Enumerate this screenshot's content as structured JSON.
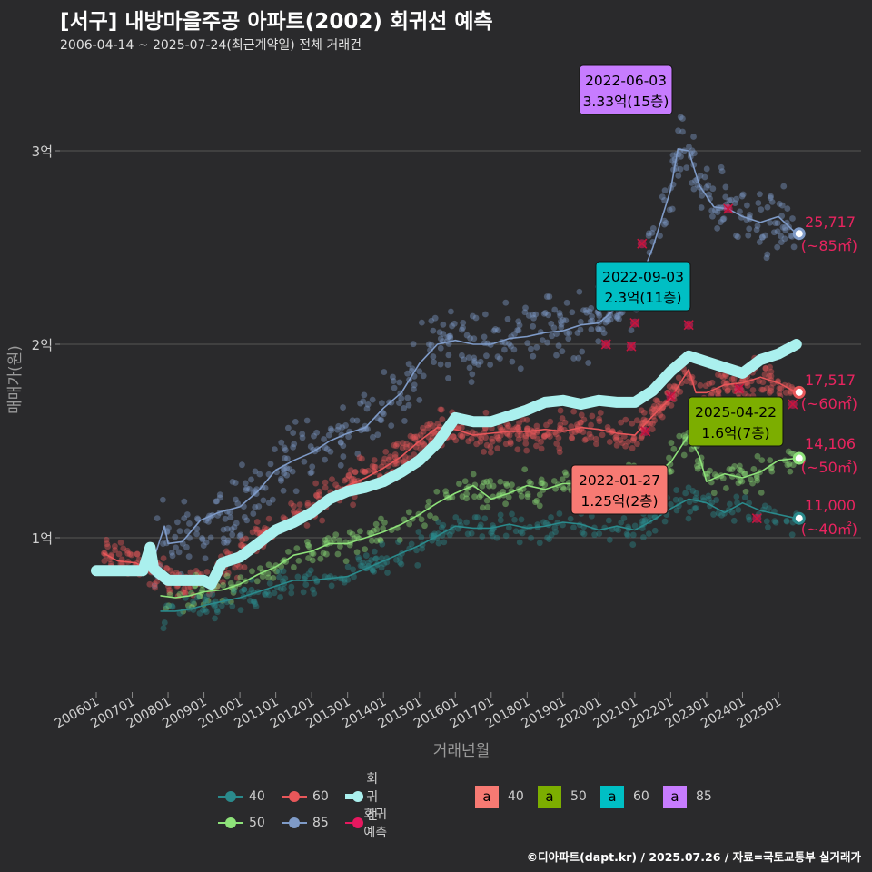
{
  "header": {
    "title": "[서구] 내방마을주공 아파트(2002) 회귀선 예측",
    "subtitle": "2006-04-14 ~ 2025-07-24(최근계약일) 전체 거래건"
  },
  "caption": "©디아파트(dapt.kr) / 2025.07.26 / 자료=국토교통부 실거래가",
  "legend": {
    "lines": [
      {
        "label": "40",
        "color": "#2a8a8c"
      },
      {
        "label": "60",
        "color": "#e8575a"
      },
      {
        "label": "회귀선",
        "color": "#aaf0ee"
      },
      {
        "label": "50",
        "color": "#8ee27a"
      },
      {
        "label": "85",
        "color": "#7f9bc8"
      },
      {
        "label": "회귀예측",
        "color": "#e6185f"
      }
    ],
    "box_glyph": "a",
    "boxes": [
      {
        "label": "40",
        "color": "#f77a73"
      },
      {
        "label": "50",
        "color": "#7cae00"
      },
      {
        "label": "60",
        "color": "#00bfc4"
      },
      {
        "label": "85",
        "color": "#c77cff"
      }
    ]
  },
  "chart_data": {
    "type": "line",
    "xlabel": "거래년월",
    "ylabel": "매매가(원)",
    "x_ticks": [
      "200601",
      "200701",
      "200801",
      "200901",
      "201001",
      "201101",
      "201201",
      "201301",
      "201401",
      "201501",
      "201601",
      "201701",
      "201801",
      "201901",
      "202001",
      "202101",
      "202201",
      "202301",
      "202401",
      "202501"
    ],
    "y_ticks": [
      {
        "value": 10000,
        "label": "1억"
      },
      {
        "value": 20000,
        "label": "2억"
      },
      {
        "value": 30000,
        "label": "3억"
      }
    ],
    "y_unit": "만원",
    "ylim": [
      7500,
      33500
    ],
    "grid": true,
    "series": [
      {
        "name": "85",
        "color": "#7f9bc8",
        "points": [
          [
            2007.6,
            8900
          ],
          [
            2007.9,
            10600
          ],
          [
            2008.0,
            9700
          ],
          [
            2008.4,
            9800
          ],
          [
            2008.9,
            10900
          ],
          [
            2009.4,
            11300
          ],
          [
            2010.0,
            11600
          ],
          [
            2010.5,
            12400
          ],
          [
            2011.0,
            13500
          ],
          [
            2011.5,
            14000
          ],
          [
            2012.0,
            14400
          ],
          [
            2012.5,
            15000
          ],
          [
            2013.0,
            15400
          ],
          [
            2013.5,
            15700
          ],
          [
            2014.0,
            16700
          ],
          [
            2014.5,
            17500
          ],
          [
            2015.0,
            19000
          ],
          [
            2015.5,
            20000
          ],
          [
            2016.0,
            20200
          ],
          [
            2016.5,
            20000
          ],
          [
            2017.0,
            20000
          ],
          [
            2017.5,
            20300
          ],
          [
            2018.0,
            20400
          ],
          [
            2018.5,
            20600
          ],
          [
            2019.0,
            20700
          ],
          [
            2019.5,
            21000
          ],
          [
            2020.0,
            21100
          ],
          [
            2020.5,
            21900
          ],
          [
            2021.0,
            22600
          ],
          [
            2021.5,
            25000
          ],
          [
            2022.0,
            28000
          ],
          [
            2022.2,
            30100
          ],
          [
            2022.5,
            30000
          ],
          [
            2022.8,
            28200
          ],
          [
            2023.2,
            27100
          ],
          [
            2023.6,
            27000
          ],
          [
            2024.0,
            26600
          ],
          [
            2024.5,
            26300
          ],
          [
            2025.0,
            26600
          ],
          [
            2025.5,
            25717
          ]
        ]
      },
      {
        "name": "60",
        "color": "#e8575a",
        "points": [
          [
            2006.2,
            9200
          ],
          [
            2006.6,
            8800
          ],
          [
            2007.1,
            8700
          ],
          [
            2007.6,
            8200
          ],
          [
            2008.1,
            7900
          ],
          [
            2008.6,
            7700
          ],
          [
            2009.0,
            7600
          ],
          [
            2009.5,
            8400
          ],
          [
            2010.0,
            9200
          ],
          [
            2010.5,
            10000
          ],
          [
            2011.0,
            10400
          ],
          [
            2011.5,
            10900
          ],
          [
            2012.0,
            11500
          ],
          [
            2012.5,
            12200
          ],
          [
            2013.0,
            12700
          ],
          [
            2013.5,
            13100
          ],
          [
            2014.0,
            13600
          ],
          [
            2014.5,
            14200
          ],
          [
            2015.0,
            15000
          ],
          [
            2015.5,
            15700
          ],
          [
            2016.0,
            15600
          ],
          [
            2016.5,
            15300
          ],
          [
            2017.0,
            15400
          ],
          [
            2017.5,
            15500
          ],
          [
            2018.0,
            15500
          ],
          [
            2018.5,
            15600
          ],
          [
            2019.0,
            15500
          ],
          [
            2019.5,
            15700
          ],
          [
            2020.0,
            15600
          ],
          [
            2020.5,
            15400
          ],
          [
            2021.0,
            15300
          ],
          [
            2021.5,
            16300
          ],
          [
            2022.0,
            17200
          ],
          [
            2022.5,
            18700
          ],
          [
            2022.7,
            17500
          ],
          [
            2023.0,
            17500
          ],
          [
            2023.5,
            17900
          ],
          [
            2024.0,
            18000
          ],
          [
            2024.5,
            18300
          ],
          [
            2025.0,
            18000
          ],
          [
            2025.5,
            17517
          ]
        ]
      },
      {
        "name": "50",
        "color": "#8ee27a",
        "points": [
          [
            2007.8,
            7000
          ],
          [
            2008.2,
            6900
          ],
          [
            2008.6,
            7000
          ],
          [
            2009.0,
            7200
          ],
          [
            2009.5,
            7300
          ],
          [
            2010.0,
            7600
          ],
          [
            2010.5,
            8100
          ],
          [
            2011.0,
            8500
          ],
          [
            2011.5,
            9100
          ],
          [
            2012.0,
            9300
          ],
          [
            2012.5,
            9700
          ],
          [
            2013.0,
            9700
          ],
          [
            2013.5,
            10000
          ],
          [
            2014.0,
            10300
          ],
          [
            2014.5,
            10700
          ],
          [
            2015.0,
            11200
          ],
          [
            2015.5,
            11800
          ],
          [
            2016.0,
            12300
          ],
          [
            2016.5,
            12700
          ],
          [
            2017.0,
            12000
          ],
          [
            2017.5,
            12300
          ],
          [
            2018.0,
            12700
          ],
          [
            2018.5,
            12500
          ],
          [
            2019.0,
            12800
          ],
          [
            2019.5,
            12800
          ],
          [
            2020.0,
            12600
          ],
          [
            2020.5,
            13000
          ],
          [
            2021.0,
            13000
          ],
          [
            2021.5,
            13200
          ],
          [
            2022.0,
            13900
          ],
          [
            2022.5,
            15300
          ],
          [
            2022.8,
            14200
          ],
          [
            2023.0,
            12900
          ],
          [
            2023.5,
            13300
          ],
          [
            2024.0,
            13100
          ],
          [
            2024.5,
            13400
          ],
          [
            2025.0,
            14000
          ],
          [
            2025.5,
            14106
          ]
        ]
      },
      {
        "name": "40",
        "color": "#2a8a8c",
        "points": [
          [
            2007.8,
            6200
          ],
          [
            2008.2,
            6200
          ],
          [
            2008.6,
            6300
          ],
          [
            2009.0,
            6500
          ],
          [
            2009.5,
            6700
          ],
          [
            2010.0,
            6900
          ],
          [
            2010.5,
            7200
          ],
          [
            2011.0,
            7500
          ],
          [
            2011.5,
            7800
          ],
          [
            2012.0,
            7800
          ],
          [
            2012.5,
            7900
          ],
          [
            2013.0,
            8000
          ],
          [
            2013.5,
            8400
          ],
          [
            2014.0,
            8800
          ],
          [
            2014.5,
            9200
          ],
          [
            2015.0,
            9600
          ],
          [
            2015.5,
            10100
          ],
          [
            2016.0,
            10600
          ],
          [
            2016.5,
            10500
          ],
          [
            2017.0,
            10500
          ],
          [
            2017.5,
            10700
          ],
          [
            2018.0,
            10500
          ],
          [
            2018.5,
            10600
          ],
          [
            2019.0,
            10800
          ],
          [
            2019.5,
            10700
          ],
          [
            2020.0,
            10400
          ],
          [
            2020.5,
            10600
          ],
          [
            2021.0,
            10400
          ],
          [
            2021.5,
            10900
          ],
          [
            2022.0,
            11500
          ],
          [
            2022.5,
            12000
          ],
          [
            2023.0,
            11800
          ],
          [
            2023.5,
            11300
          ],
          [
            2024.0,
            11800
          ],
          [
            2024.5,
            11400
          ],
          [
            2025.0,
            11200
          ],
          [
            2025.5,
            11000
          ]
        ]
      },
      {
        "name": "회귀선",
        "color": "#aaf0ee",
        "points": [
          [
            2006.0,
            8300
          ],
          [
            2006.5,
            8300
          ],
          [
            2007.0,
            8300
          ],
          [
            2007.3,
            8300
          ],
          [
            2007.5,
            9500
          ],
          [
            2007.6,
            8400
          ],
          [
            2008.0,
            7800
          ],
          [
            2008.5,
            7800
          ],
          [
            2009.0,
            7800
          ],
          [
            2009.2,
            7600
          ],
          [
            2009.5,
            8700
          ],
          [
            2010.0,
            9000
          ],
          [
            2010.5,
            9700
          ],
          [
            2011.0,
            10400
          ],
          [
            2011.5,
            10800
          ],
          [
            2012.0,
            11300
          ],
          [
            2012.5,
            12000
          ],
          [
            2013.0,
            12400
          ],
          [
            2013.5,
            12600
          ],
          [
            2014.0,
            12900
          ],
          [
            2014.5,
            13400
          ],
          [
            2015.0,
            14000
          ],
          [
            2015.5,
            14900
          ],
          [
            2016.0,
            16200
          ],
          [
            2016.5,
            16000
          ],
          [
            2017.0,
            16000
          ],
          [
            2017.5,
            16300
          ],
          [
            2018.0,
            16600
          ],
          [
            2018.5,
            17000
          ],
          [
            2019.0,
            17100
          ],
          [
            2019.5,
            16900
          ],
          [
            2020.0,
            17100
          ],
          [
            2020.5,
            17000
          ],
          [
            2021.0,
            17000
          ],
          [
            2021.5,
            17600
          ],
          [
            2022.0,
            18600
          ],
          [
            2022.5,
            19400
          ],
          [
            2023.0,
            19100
          ],
          [
            2023.5,
            18800
          ],
          [
            2024.0,
            18500
          ],
          [
            2024.5,
            19200
          ],
          [
            2025.0,
            19500
          ],
          [
            2025.5,
            20000
          ]
        ]
      }
    ],
    "markers": [
      {
        "series": "85",
        "x": 2025.5,
        "value": 25717
      },
      {
        "series": "60",
        "x": 2025.5,
        "value": 17517
      },
      {
        "series": "50",
        "x": 2025.5,
        "value": 14106
      },
      {
        "series": "40",
        "x": 2025.5,
        "value": 11000
      }
    ],
    "end_labels": [
      {
        "series": "85",
        "value_text": "25,717",
        "area_text": "(~85㎡)"
      },
      {
        "series": "60",
        "value_text": "17,517",
        "area_text": "(~60㎡)"
      },
      {
        "series": "50",
        "value_text": "14,106",
        "area_text": "(~50㎡)"
      },
      {
        "series": "40",
        "value_text": "11,000",
        "area_text": "(~40㎡)"
      }
    ],
    "annotations": [
      {
        "date": "2022-06-03",
        "text": "3.33억(15층)",
        "color": "#c77cff",
        "x": 2022.42,
        "value": 33300
      },
      {
        "date": "2022-09-03",
        "text": "2.3억(11층)",
        "color": "#00bfc4",
        "x": 2022.67,
        "value": 23000
      },
      {
        "date": "2025-04-22",
        "text": "1.6억(7층)",
        "color": "#7cae00",
        "x": 2025.3,
        "value": 16000
      },
      {
        "date": "2022-01-27",
        "text": "1.25억(2층)",
        "color": "#f77a73",
        "x": 2022.07,
        "value": 12500
      }
    ],
    "predictions": [
      {
        "x": 2020.2,
        "value": 20000
      },
      {
        "x": 2020.9,
        "value": 19900
      },
      {
        "x": 2021.0,
        "value": 21100
      },
      {
        "x": 2021.2,
        "value": 25200
      },
      {
        "x": 2022.5,
        "value": 21000
      },
      {
        "x": 2023.6,
        "value": 27000
      },
      {
        "x": 2023.9,
        "value": 17700
      },
      {
        "x": 2024.4,
        "value": 11000
      },
      {
        "x": 2025.4,
        "value": 16900
      },
      {
        "x": 2021.3,
        "value": 15500
      },
      {
        "x": 2022.0,
        "value": 17300
      }
    ]
  }
}
